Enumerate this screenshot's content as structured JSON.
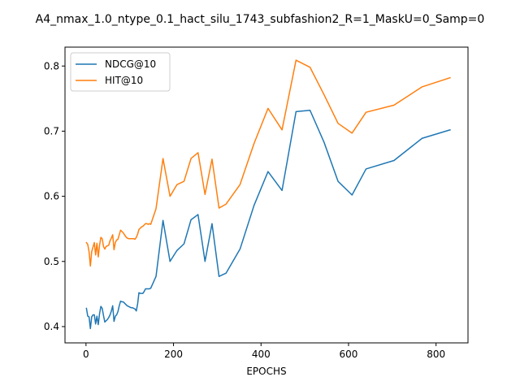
{
  "chart_data": {
    "type": "line",
    "title": "A4_nmax_1.0_ntype_0.1_hact_silu_1743_subfashion2_R=1_MaskU=0_Samp=0",
    "xlabel": "EPOCHS",
    "ylabel": "",
    "xlim": [
      -48,
      873
    ],
    "ylim": [
      0.375,
      0.829
    ],
    "xticks": [
      0,
      200,
      400,
      600,
      800
    ],
    "yticks": [
      0.4,
      0.5,
      0.6,
      0.7,
      0.8
    ],
    "xtick_labels": [
      "0",
      "200",
      "400",
      "600",
      "800"
    ],
    "ytick_labels": [
      "0.4",
      "0.5",
      "0.6",
      "0.7",
      "0.8"
    ],
    "grid": false,
    "legend_position": "upper-left",
    "series": [
      {
        "name": "NDCG@10",
        "color": "#1f77b4",
        "x": [
          1,
          4,
          7,
          10,
          13,
          16,
          19,
          22,
          25,
          28,
          31,
          34,
          37,
          40,
          43,
          46,
          49,
          52,
          55,
          58,
          61,
          64,
          67,
          70,
          73,
          76,
          79,
          82,
          85,
          88,
          91,
          94,
          97,
          100,
          103,
          106,
          109,
          112,
          115,
          118,
          121,
          124,
          127,
          130,
          133,
          136,
          139,
          142,
          145,
          148,
          160,
          176,
          192,
          208,
          224,
          240,
          256,
          272,
          288,
          304,
          320,
          352,
          384,
          416,
          448,
          480,
          512,
          544,
          576,
          608,
          640,
          704,
          768,
          832
        ],
        "y": [
          0.428,
          0.416,
          0.415,
          0.397,
          0.415,
          0.418,
          0.418,
          0.404,
          0.416,
          0.403,
          0.42,
          0.431,
          0.428,
          0.417,
          0.407,
          0.409,
          0.411,
          0.414,
          0.418,
          0.424,
          0.432,
          0.408,
          0.416,
          0.418,
          0.423,
          0.432,
          0.439,
          0.438,
          0.438,
          0.436,
          0.434,
          0.432,
          0.431,
          0.43,
          0.429,
          0.429,
          0.428,
          0.427,
          0.424,
          0.435,
          0.452,
          0.451,
          0.451,
          0.451,
          0.454,
          0.458,
          0.458,
          0.458,
          0.458,
          0.459,
          0.477,
          0.563,
          0.5,
          0.517,
          0.527,
          0.564,
          0.572,
          0.5,
          0.558,
          0.477,
          0.482,
          0.519,
          0.586,
          0.638,
          0.609,
          0.73,
          0.732,
          0.683,
          0.623,
          0.602,
          0.642,
          0.655,
          0.689,
          0.702
        ]
      },
      {
        "name": "HIT@10",
        "color": "#ff7f0e",
        "x": [
          1,
          4,
          7,
          10,
          13,
          16,
          19,
          22,
          25,
          28,
          31,
          34,
          37,
          40,
          43,
          46,
          49,
          52,
          55,
          58,
          61,
          64,
          67,
          70,
          73,
          76,
          79,
          82,
          85,
          88,
          91,
          94,
          97,
          100,
          103,
          106,
          109,
          112,
          115,
          118,
          121,
          124,
          127,
          130,
          133,
          136,
          139,
          142,
          145,
          148,
          160,
          176,
          192,
          208,
          224,
          240,
          256,
          272,
          288,
          304,
          320,
          352,
          384,
          416,
          448,
          480,
          512,
          544,
          576,
          608,
          640,
          704,
          768,
          832
        ],
        "y": [
          0.529,
          0.526,
          0.515,
          0.493,
          0.515,
          0.522,
          0.529,
          0.51,
          0.528,
          0.507,
          0.525,
          0.537,
          0.535,
          0.523,
          0.519,
          0.523,
          0.524,
          0.525,
          0.532,
          0.536,
          0.541,
          0.518,
          0.529,
          0.533,
          0.534,
          0.541,
          0.548,
          0.546,
          0.544,
          0.541,
          0.538,
          0.536,
          0.535,
          0.535,
          0.535,
          0.535,
          0.535,
          0.534,
          0.537,
          0.542,
          0.549,
          0.551,
          0.553,
          0.554,
          0.556,
          0.558,
          0.558,
          0.557,
          0.558,
          0.557,
          0.581,
          0.658,
          0.6,
          0.618,
          0.623,
          0.658,
          0.667,
          0.603,
          0.657,
          0.582,
          0.588,
          0.618,
          0.681,
          0.735,
          0.702,
          0.809,
          0.798,
          0.756,
          0.712,
          0.697,
          0.729,
          0.74,
          0.768,
          0.782
        ]
      }
    ]
  }
}
